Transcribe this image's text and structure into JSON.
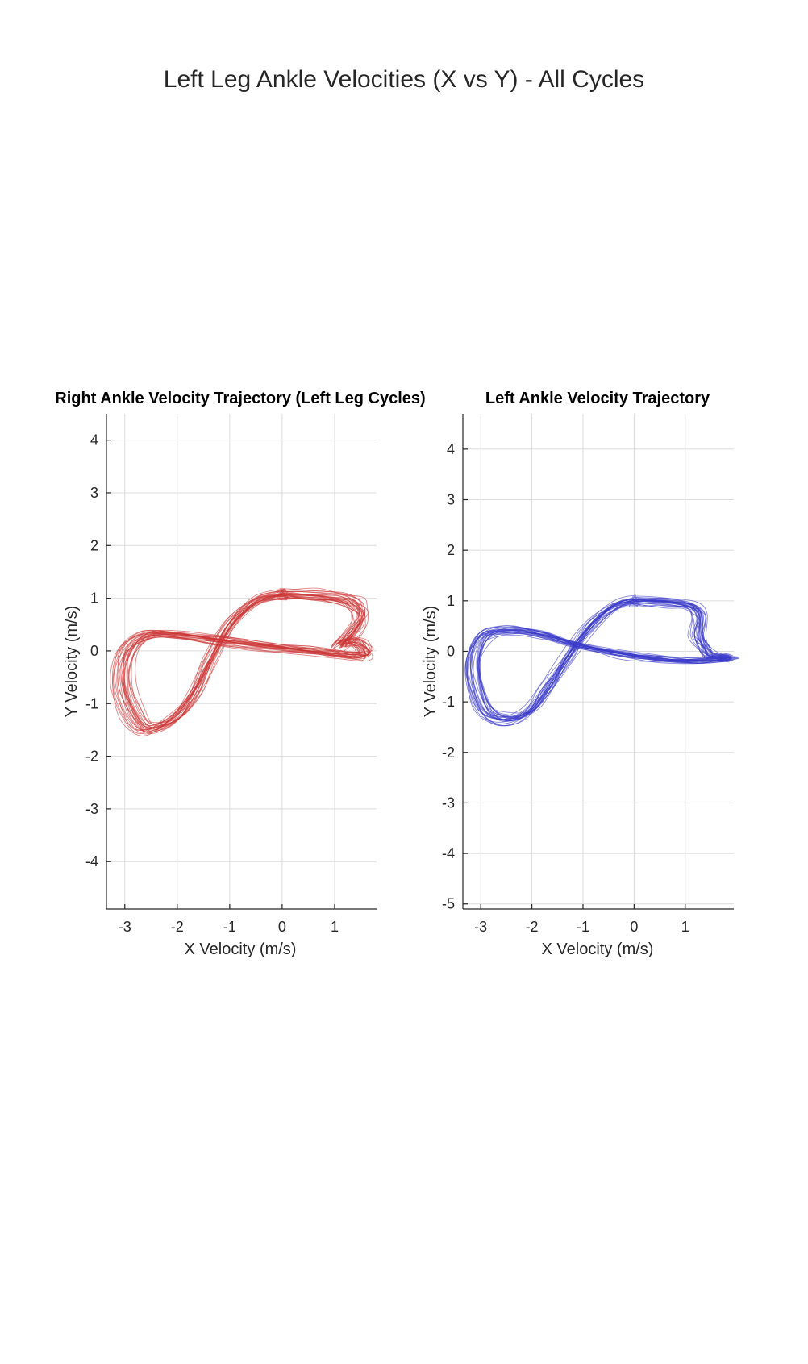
{
  "figure": {
    "suptitle": "Left Leg Ankle Velocities (X vs Y) - All Cycles"
  },
  "chart_data": [
    {
      "type": "line",
      "title": "Right Ankle Velocity Trajectory (Left Leg Cycles)",
      "xlabel": "X Velocity (m/s)",
      "ylabel": "Y Velocity (m/s)",
      "xlim": [
        -3.35,
        1.8
      ],
      "ylim": [
        -4.9,
        4.5
      ],
      "xticks": [
        -3,
        -2,
        -1,
        0,
        1
      ],
      "yticks": [
        -4,
        -3,
        -2,
        -1,
        0,
        1,
        2,
        3,
        4
      ],
      "grid": true,
      "color": "#cc3333",
      "cycles": 25,
      "base_trajectory": {
        "x": [
          0,
          0.6,
          1.1,
          1.4,
          1.55,
          1.45,
          1.15,
          1.25,
          1.5,
          1.65,
          1.45,
          1.0,
          0.5,
          -0.3,
          -1.2,
          -2.0,
          -2.6,
          -3.0,
          -3.1,
          -2.9,
          -2.6,
          -2.1,
          -1.7,
          -1.4,
          -1.0,
          -0.5,
          0
        ],
        "y": [
          1.08,
          1.05,
          1.0,
          0.9,
          0.7,
          0.45,
          0.1,
          0.18,
          0.15,
          -0.05,
          -0.1,
          -0.05,
          0.0,
          0.08,
          0.2,
          0.3,
          0.3,
          0.0,
          -0.6,
          -1.2,
          -1.5,
          -1.3,
          -0.8,
          -0.2,
          0.5,
          0.95,
          1.08
        ]
      }
    },
    {
      "type": "line",
      "title": "Left Ankle Velocity Trajectory",
      "xlabel": "X Velocity (m/s)",
      "ylabel": "Y Velocity (m/s)",
      "xlim": [
        -3.35,
        1.95
      ],
      "ylim": [
        -5.1,
        4.7
      ],
      "xticks": [
        -3,
        -2,
        -1,
        0,
        1
      ],
      "yticks": [
        -5,
        -4,
        -3,
        -2,
        -1,
        0,
        1,
        2,
        3,
        4
      ],
      "grid": true,
      "color": "#3838c8",
      "cycles": 25,
      "base_trajectory": {
        "x": [
          0,
          0.6,
          1.1,
          1.3,
          1.25,
          1.4,
          1.55,
          1.9,
          1.7,
          1.2,
          0.5,
          -0.3,
          -1.2,
          -1.9,
          -2.5,
          -3.0,
          -3.2,
          -3.0,
          -2.6,
          -2.1,
          -1.7,
          -1.3,
          -0.9,
          -0.4,
          0
        ],
        "y": [
          1.0,
          0.98,
          0.9,
          0.7,
          0.3,
          0.05,
          -0.1,
          -0.12,
          -0.15,
          -0.2,
          -0.15,
          -0.05,
          0.15,
          0.35,
          0.42,
          0.3,
          -0.3,
          -1.1,
          -1.35,
          -1.2,
          -0.7,
          -0.1,
          0.5,
          0.9,
          1.0
        ]
      }
    }
  ]
}
